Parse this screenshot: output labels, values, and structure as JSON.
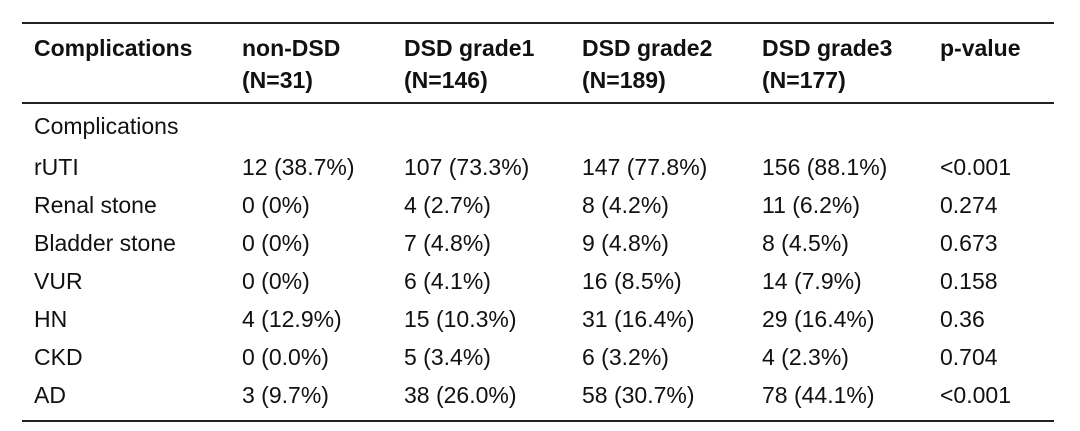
{
  "table": {
    "headers": [
      {
        "line1": "Complications",
        "line2": ""
      },
      {
        "line1": "non-DSD",
        "line2": "(N=31)"
      },
      {
        "line1": "DSD grade1",
        "line2": "(N=146)"
      },
      {
        "line1": "DSD grade2",
        "line2": "(N=189)"
      },
      {
        "line1": "DSD grade3",
        "line2": "(N=177)"
      },
      {
        "line1": "p-value",
        "line2": ""
      }
    ],
    "section_label": "Complications",
    "rows": [
      [
        "rUTI",
        "12 (38.7%)",
        "107 (73.3%)",
        "147 (77.8%)",
        "156 (88.1%)",
        "<0.001"
      ],
      [
        "Renal stone",
        "0 (0%)",
        "4 (2.7%)",
        "8 (4.2%)",
        "11 (6.2%)",
        "0.274"
      ],
      [
        "Bladder stone",
        "0 (0%)",
        "7 (4.8%)",
        "9 (4.8%)",
        "8 (4.5%)",
        "0.673"
      ],
      [
        "VUR",
        "0 (0%)",
        "6 (4.1%)",
        "16 (8.5%)",
        "14 (7.9%)",
        "0.158"
      ],
      [
        "HN",
        "4 (12.9%)",
        "15 (10.3%)",
        "31 (16.4%)",
        "29 (16.4%)",
        "0.36"
      ],
      [
        "CKD",
        "0 (0.0%)",
        "5 (3.4%)",
        "6 (3.2%)",
        "4 (2.3%)",
        "0.704"
      ],
      [
        "AD",
        "3 (9.7%)",
        "38 (26.0%)",
        "58 (30.7%)",
        "78 (44.1%)",
        "<0.001"
      ]
    ]
  }
}
